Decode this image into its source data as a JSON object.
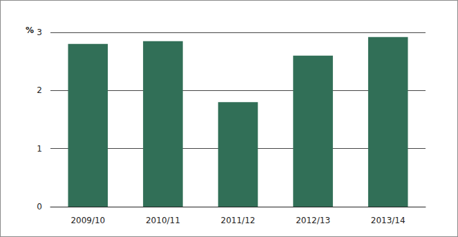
{
  "chart_data": {
    "type": "bar",
    "ylabel": "%",
    "categories": [
      "2009/10",
      "2010/11",
      "2011/12",
      "2012/13",
      "2013/14"
    ],
    "values": [
      2.8,
      2.85,
      1.8,
      2.6,
      2.92
    ],
    "color": "#316f57",
    "ylim": [
      0,
      3
    ],
    "yticks": [
      0,
      1,
      2,
      3
    ],
    "grid": true
  }
}
